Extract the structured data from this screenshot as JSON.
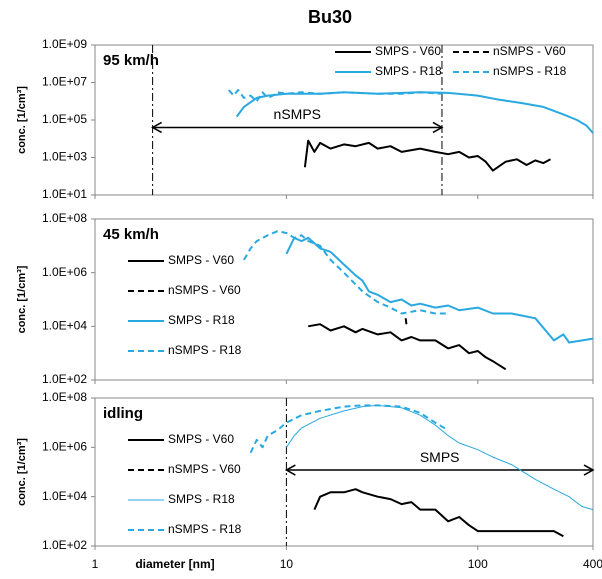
{
  "chart_data": [
    {
      "type": "line",
      "title": "Bu30",
      "label": "95 km/h",
      "ylabel": "conc. [1/cm³]",
      "log_x": true,
      "log_y": true,
      "xlim": [
        1,
        400
      ],
      "xticks": [
        1,
        10,
        100,
        400
      ],
      "ylim": [
        10,
        1000000000
      ],
      "yticks": [
        {
          "value": 10,
          "label": "1.0E+01"
        },
        {
          "value": 1000,
          "label": "1.0E+03"
        },
        {
          "value": 100000,
          "label": "1.0E+05"
        },
        {
          "value": 10000000,
          "label": "1.0E+07"
        },
        {
          "value": 1000000000,
          "label": "1.0E+09"
        }
      ],
      "legend": "upper right",
      "range": {
        "label": "nSMPS",
        "x": [
          2,
          65
        ],
        "y": 40000
      },
      "series": [
        {
          "name": "SMPS - V60",
          "color": "#000000",
          "style": "solid",
          "line_width": 2,
          "x": [
            12.5,
            13,
            14,
            15,
            17,
            20,
            23,
            27,
            30,
            35,
            40,
            50,
            60,
            70,
            80,
            90,
            100,
            110,
            120,
            140,
            160,
            180,
            200,
            220,
            240
          ],
          "values": [
            300,
            8000,
            2000,
            6000,
            3000,
            5000,
            4000,
            6000,
            3000,
            4000,
            2000,
            3000,
            2000,
            1500,
            2000,
            1000,
            1200,
            600,
            200,
            600,
            800,
            400,
            700,
            500,
            800
          ]
        },
        {
          "name": "nSMPS - V60",
          "color": "#000000",
          "style": "dashed",
          "line_width": 2,
          "x": [],
          "values": []
        },
        {
          "name": "SMPS - R18",
          "color": "#29a9e0",
          "style": "solid",
          "line_width": 2,
          "x": [
            5.5,
            6,
            7,
            8,
            10,
            15,
            20,
            30,
            50,
            70,
            100,
            130,
            170,
            220,
            280,
            330,
            370,
            400
          ],
          "values": [
            150000,
            500000,
            1500000,
            2000000,
            2500000,
            2500000,
            3000000,
            2500000,
            3000000,
            2800000,
            2000000,
            1200000,
            800000,
            500000,
            200000,
            100000,
            50000,
            20000
          ]
        },
        {
          "name": "nSMPS - R18",
          "color": "#29a9e0",
          "style": "dashed",
          "line_width": 2,
          "x": [
            5,
            5.3,
            5.6,
            6,
            6.5,
            7,
            7.5,
            8,
            8.5,
            9,
            10,
            12,
            15,
            20,
            30,
            40,
            50,
            65
          ],
          "values": [
            4000000,
            2000000,
            4000000,
            1500000,
            2000000,
            1000000,
            3000000,
            1500000,
            2000000,
            3000000,
            2500000,
            3000000,
            2500000,
            3000000,
            2500000,
            2500000,
            3000000,
            2500000
          ]
        }
      ]
    },
    {
      "type": "line",
      "label": "45 km/h",
      "ylabel": "conc. [1/cm³]",
      "log_x": true,
      "log_y": true,
      "xlim": [
        1,
        400
      ],
      "xticks": [
        1,
        10,
        100,
        400
      ],
      "ylim": [
        100,
        100000000
      ],
      "yticks": [
        {
          "value": 100,
          "label": "1.0E+02"
        },
        {
          "value": 10000,
          "label": "1.0E+04"
        },
        {
          "value": 1000000,
          "label": "1.0E+06"
        },
        {
          "value": 100000000,
          "label": "1.0E+08"
        }
      ],
      "legend": "left",
      "series": [
        {
          "name": "SMPS - V60",
          "color": "#000000",
          "style": "solid",
          "line_width": 2,
          "x": [
            13,
            15,
            17,
            20,
            23,
            25,
            30,
            35,
            40,
            45,
            50,
            60,
            70,
            80,
            90,
            100,
            110,
            120,
            140
          ],
          "values": [
            10000,
            12000,
            7000,
            10000,
            6000,
            8000,
            5000,
            6000,
            3000,
            4000,
            3000,
            3000,
            1500,
            2000,
            1000,
            1200,
            700,
            500,
            250
          ]
        },
        {
          "name": "nSMPS - V60",
          "color": "#000000",
          "style": "dashed",
          "line_width": 2,
          "x": [
            42,
            42.5
          ],
          "values": [
            20000,
            10000
          ]
        },
        {
          "name": "SMPS - R18",
          "color": "#29a9e0",
          "style": "solid",
          "line_width": 2,
          "x": [
            10,
            11,
            12,
            13,
            15,
            17,
            20,
            23,
            25,
            27,
            30,
            35,
            40,
            45,
            50,
            60,
            70,
            80,
            100,
            120,
            150,
            200,
            250,
            280,
            300,
            400
          ],
          "values": [
            5000000,
            20000000,
            15000000,
            20000000,
            8000000,
            6000000,
            2000000,
            800000,
            500000,
            200000,
            150000,
            80000,
            100000,
            60000,
            70000,
            50000,
            60000,
            40000,
            50000,
            30000,
            30000,
            20000,
            3000,
            5000,
            2500,
            3500
          ]
        },
        {
          "name": "nSMPS - R18",
          "color": "#29a9e0",
          "style": "dashed",
          "line_width": 2,
          "x": [
            6,
            6.5,
            7,
            8,
            9,
            10,
            11,
            12,
            13,
            15,
            17,
            20,
            25,
            30,
            35,
            40,
            50,
            60,
            70
          ],
          "values": [
            3000000,
            8000000,
            15000000,
            25000000,
            35000000,
            30000000,
            20000000,
            25000000,
            15000000,
            10000000,
            3000000,
            1000000,
            200000,
            80000,
            50000,
            30000,
            40000,
            30000,
            30000
          ]
        }
      ]
    },
    {
      "type": "line",
      "label": "idling",
      "ylabel": "conc. [1/cm³]",
      "xlabel": "diameter [nm]",
      "log_x": true,
      "log_y": true,
      "xlim": [
        1,
        400
      ],
      "xticks": [
        1,
        10,
        100,
        400
      ],
      "ylim": [
        100,
        100000000
      ],
      "yticks": [
        {
          "value": 100,
          "label": "1.0E+02"
        },
        {
          "value": 10000,
          "label": "1.0E+04"
        },
        {
          "value": 1000000,
          "label": "1.0E+06"
        },
        {
          "value": 100000000,
          "label": "1.0E+08"
        }
      ],
      "legend": "left",
      "range": {
        "label": "SMPS",
        "x": [
          10,
          400
        ],
        "y": 120000
      },
      "series": [
        {
          "name": "SMPS - V60",
          "color": "#000000",
          "style": "solid",
          "line_width": 2,
          "x": [
            14,
            15,
            17,
            20,
            23,
            25,
            30,
            35,
            40,
            45,
            50,
            60,
            70,
            80,
            90,
            100,
            120,
            150,
            200,
            250,
            280
          ],
          "values": [
            3000,
            10000,
            15000,
            15000,
            20000,
            15000,
            10000,
            8000,
            5000,
            6000,
            3000,
            3000,
            1000,
            1500,
            700,
            400,
            400,
            400,
            400,
            400,
            250
          ]
        },
        {
          "name": "nSMPS - V60",
          "color": "#000000",
          "style": "dashed",
          "line_width": 2,
          "x": [],
          "values": []
        },
        {
          "name": "SMPS - R18",
          "color": "#29a9e0",
          "style": "solid",
          "line_width": 1,
          "x": [
            10,
            11,
            12,
            15,
            20,
            25,
            30,
            40,
            50,
            60,
            70,
            80,
            100,
            120,
            150,
            200,
            250,
            300,
            350,
            400
          ],
          "values": [
            1000000,
            3000000,
            6000000,
            15000000,
            30000000,
            45000000,
            50000000,
            40000000,
            20000000,
            8000000,
            3000000,
            1500000,
            800000,
            400000,
            200000,
            50000,
            20000,
            10000,
            4000,
            3000
          ]
        },
        {
          "name": "nSMPS - R18",
          "color": "#29a9e0",
          "style": "dashed",
          "line_width": 2,
          "x": [
            6.5,
            7,
            7.5,
            8,
            9,
            10,
            12,
            15,
            20,
            25,
            30,
            40,
            50,
            60,
            70
          ],
          "values": [
            600000,
            2000000,
            1000000,
            3000000,
            5000000,
            10000000,
            20000000,
            30000000,
            45000000,
            50000000,
            50000000,
            45000000,
            25000000,
            10000000,
            5000000
          ]
        }
      ]
    }
  ]
}
